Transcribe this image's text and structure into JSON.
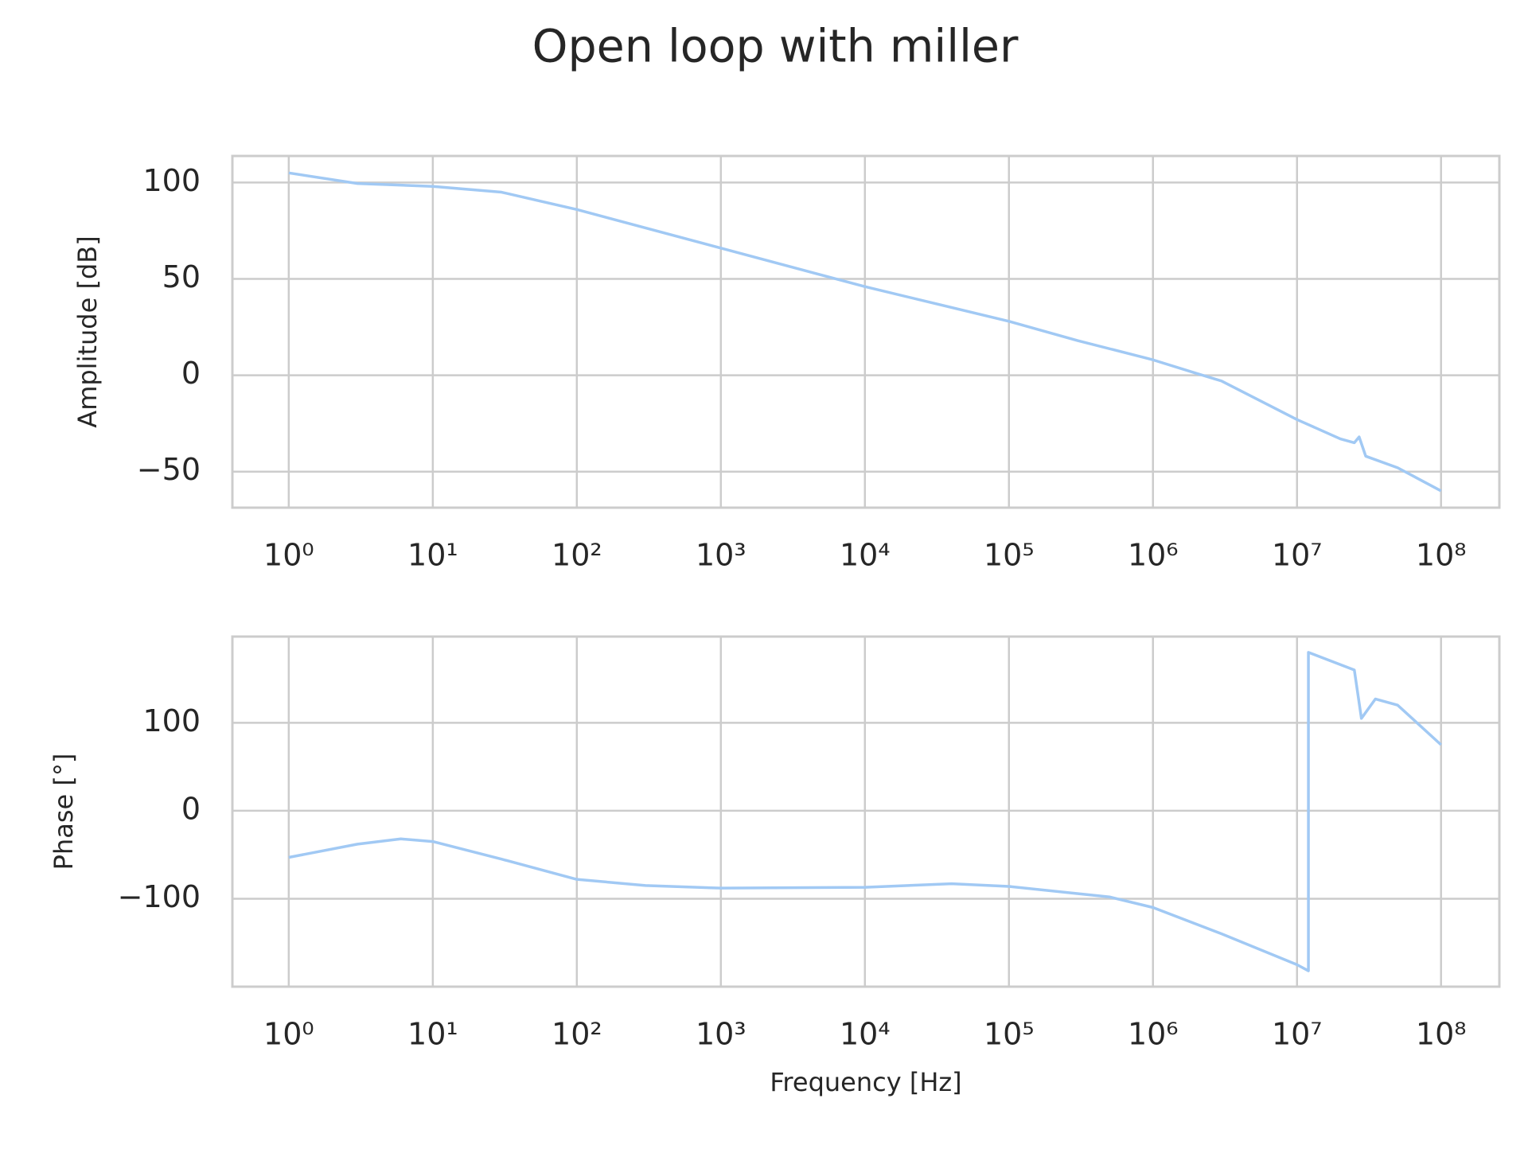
{
  "title": "Open loop with miller",
  "chart_data": [
    {
      "type": "line",
      "ylabel": "Amplitude [dB]",
      "xscale": "log",
      "grid": true,
      "xlim": [
        0.406,
        254000000
      ],
      "ylim": [
        -68.7,
        113.8
      ],
      "xticks": [
        {
          "value": 1,
          "label": "10⁰"
        },
        {
          "value": 10,
          "label": "10¹"
        },
        {
          "value": 100,
          "label": "10²"
        },
        {
          "value": 1000,
          "label": "10³"
        },
        {
          "value": 10000,
          "label": "10⁴"
        },
        {
          "value": 100000,
          "label": "10⁵"
        },
        {
          "value": 1000000,
          "label": "10⁶"
        },
        {
          "value": 10000000,
          "label": "10⁷"
        },
        {
          "value": 100000000,
          "label": "10⁸"
        }
      ],
      "yticks": [
        {
          "value": -50,
          "label": "−50"
        },
        0,
        50,
        100
      ],
      "series": [
        {
          "color": "#a1c9f4",
          "x": [
            1,
            3,
            10,
            30,
            100,
            1000,
            10000,
            100000,
            300000,
            1000000,
            2000000,
            3000000,
            10000000,
            20000000,
            25000000,
            27000000,
            30000000,
            50000000,
            100000000
          ],
          "values": [
            105,
            99.5,
            98,
            95,
            86,
            66,
            46,
            28,
            18,
            8,
            1,
            -3,
            -23,
            -33,
            -35,
            -32,
            -42,
            -48,
            -60
          ]
        }
      ]
    },
    {
      "type": "line",
      "ylabel": "Phase [°]",
      "xlabel": "Frequency [Hz]",
      "xscale": "log",
      "grid": true,
      "xlim": [
        0.406,
        254000000
      ],
      "ylim": [
        -200,
        198
      ],
      "xticks": [
        {
          "value": 1,
          "label": "10⁰"
        },
        {
          "value": 10,
          "label": "10¹"
        },
        {
          "value": 100,
          "label": "10²"
        },
        {
          "value": 1000,
          "label": "10³"
        },
        {
          "value": 10000,
          "label": "10⁴"
        },
        {
          "value": 100000,
          "label": "10⁵"
        },
        {
          "value": 1000000,
          "label": "10⁶"
        },
        {
          "value": 10000000,
          "label": "10⁷"
        },
        {
          "value": 100000000,
          "label": "10⁸"
        }
      ],
      "yticks": [
        {
          "value": -100,
          "label": "−100"
        },
        0,
        100
      ],
      "series": [
        {
          "color": "#a1c9f4",
          "x": [
            1,
            3,
            6,
            10,
            30,
            100,
            300,
            1000,
            10000,
            40000,
            100000,
            500000,
            1000000,
            3000000,
            10000000,
            12000000,
            12000000,
            25000000,
            28000000,
            35000000,
            50000000,
            100000000
          ],
          "values": [
            -53,
            -38,
            -32,
            -35,
            -55,
            -78,
            -85,
            -88,
            -87,
            -83,
            -86,
            -98,
            -110,
            -140,
            -175,
            -182,
            180,
            160,
            105,
            127,
            120,
            75
          ]
        }
      ]
    }
  ]
}
